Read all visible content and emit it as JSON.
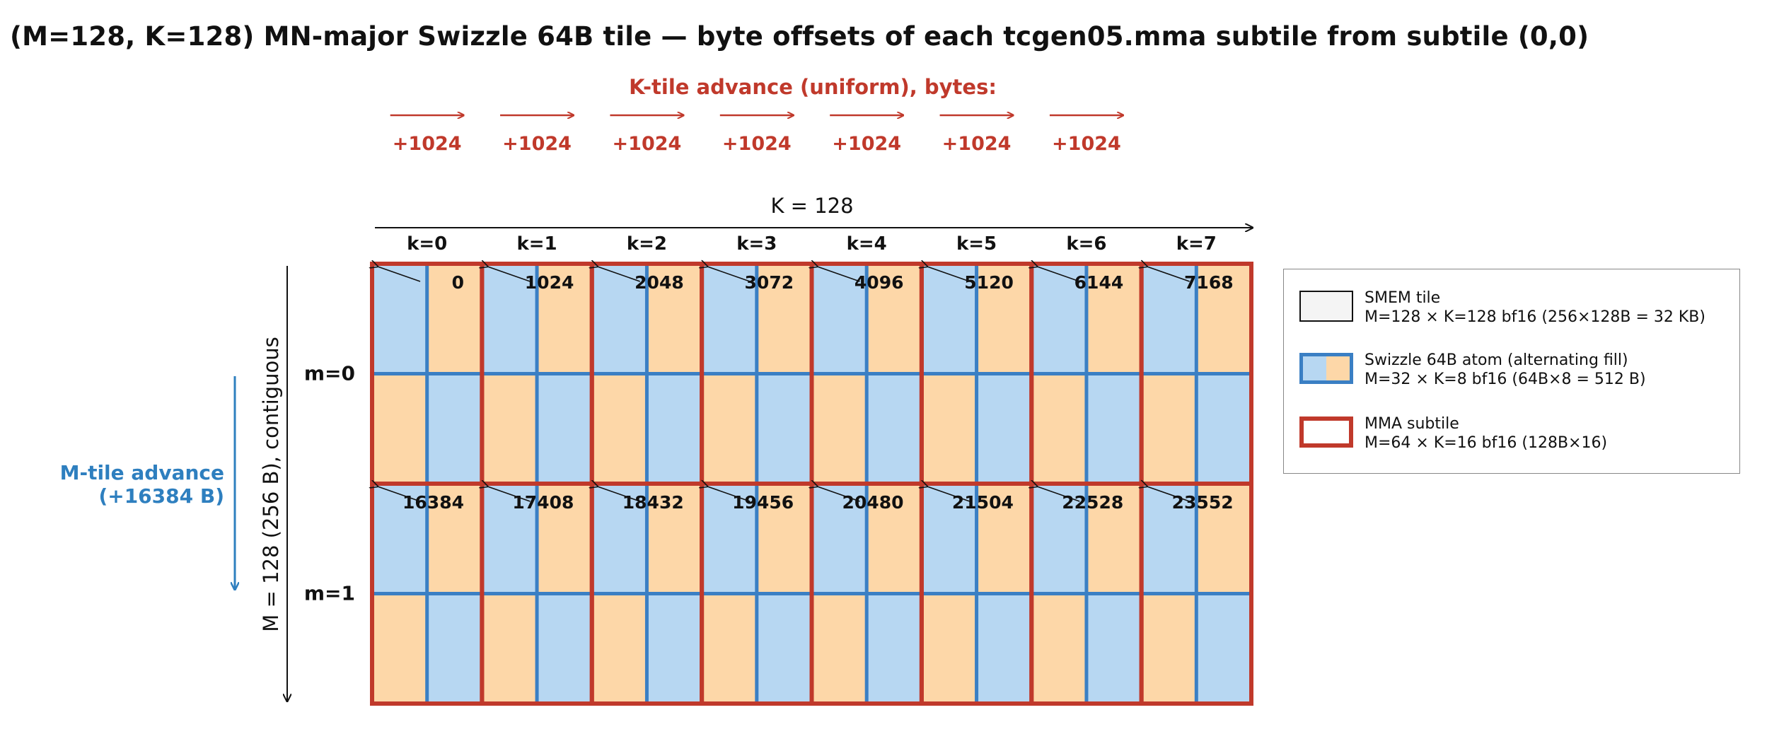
{
  "title": "(M=128, K=128) MN-major Swizzle 64B tile — byte offsets of each tcgen05.mma subtile from subtile (0,0)",
  "k_advance": {
    "title": "K-tile advance (uniform), bytes:",
    "labels": [
      "+1024",
      "+1024",
      "+1024",
      "+1024",
      "+1024",
      "+1024",
      "+1024"
    ]
  },
  "k_axis": {
    "label": "K = 128",
    "columns": [
      "k=0",
      "k=1",
      "k=2",
      "k=3",
      "k=4",
      "k=5",
      "k=6",
      "k=7"
    ]
  },
  "m_axis": {
    "label": "M = 128 (256 B), contiguous",
    "rows": [
      "m=0",
      "m=1"
    ]
  },
  "m_advance": {
    "line1": "M-tile advance",
    "line2": "(+16384 B)"
  },
  "offsets": [
    [
      "0",
      "1024",
      "2048",
      "3072",
      "4096",
      "5120",
      "6144",
      "7168"
    ],
    [
      "16384",
      "17408",
      "18432",
      "19456",
      "20480",
      "21504",
      "22528",
      "23552"
    ]
  ],
  "legend": {
    "items": [
      {
        "line1": "SMEM tile",
        "line2": "M=128 × K=128 bf16 (256×128B = 32 KB)"
      },
      {
        "line1": "Swizzle 64B atom (alternating fill)",
        "line2": "M=32 × K=8 bf16 (64B×8 = 512 B)"
      },
      {
        "line1": "MMA subtile",
        "line2": "M=64 × K=16 bf16 (128B×16)"
      }
    ]
  },
  "colors": {
    "red": "#c0392b",
    "blue": "#3a7fc4",
    "blue_fill": "#b7d7f2",
    "orange_fill": "#fdd7a8",
    "m_advance_blue": "#2e7fbf",
    "tile_fill": "#f4f4f4"
  }
}
